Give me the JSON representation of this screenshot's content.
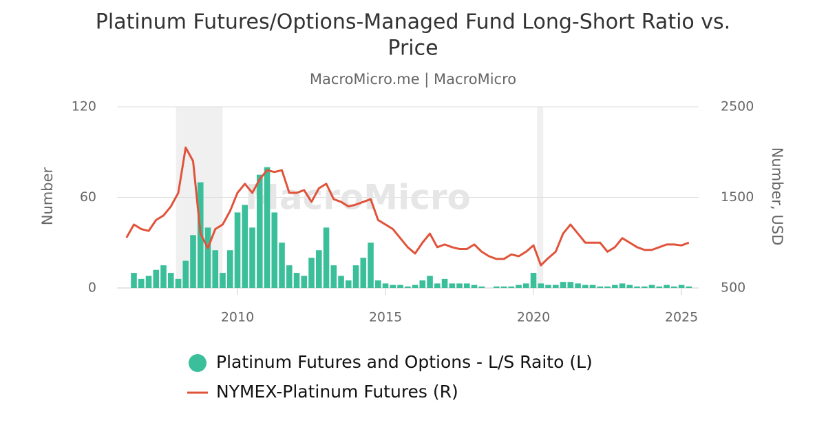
{
  "chart_data": {
    "type": "bar-line",
    "title": "Platinum Futures/Options-Managed Fund Long-Short Ratio vs.",
    "title_line2": "Price",
    "subtitle": "MacroMicro.me | MacroMicro",
    "watermark": "MacroMicro",
    "ylabel": "Number",
    "y2label": "Number, USD",
    "xlim": [
      2005.93,
      2025.58
    ],
    "xticks": [
      2010,
      2015,
      2020,
      2025
    ],
    "ylim": [
      0,
      120
    ],
    "yticks": [
      0,
      60,
      120
    ],
    "y2lim": [
      500,
      2500
    ],
    "y2ticks": [
      500,
      1500,
      2500
    ],
    "grid": true,
    "shaded_periods": [
      [
        2007.92,
        2009.5
      ],
      [
        2020.12,
        2020.33
      ]
    ],
    "x": [
      2006.25,
      2006.5,
      2006.75,
      2007,
      2007.25,
      2007.5,
      2007.75,
      2008,
      2008.25,
      2008.5,
      2008.75,
      2009,
      2009.25,
      2009.5,
      2009.75,
      2010,
      2010.25,
      2010.5,
      2010.75,
      2011,
      2011.25,
      2011.5,
      2011.75,
      2012,
      2012.25,
      2012.5,
      2012.75,
      2013,
      2013.25,
      2013.5,
      2013.75,
      2014,
      2014.25,
      2014.5,
      2014.75,
      2015,
      2015.25,
      2015.5,
      2015.75,
      2016,
      2016.25,
      2016.5,
      2016.75,
      2017,
      2017.25,
      2017.5,
      2017.75,
      2018,
      2018.25,
      2018.5,
      2018.75,
      2019,
      2019.25,
      2019.5,
      2019.75,
      2020,
      2020.25,
      2020.5,
      2020.75,
      2021,
      2021.25,
      2021.5,
      2021.75,
      2022,
      2022.25,
      2022.5,
      2022.75,
      2023,
      2023.25,
      2023.5,
      2023.75,
      2024,
      2024.25,
      2024.5,
      2024.75,
      2025,
      2025.25
    ],
    "series": [
      {
        "name": "Platinum Futures and Options - L/S Raito (L)",
        "color": "#3bbf9b",
        "kind": "bar",
        "values": [
          0,
          10,
          6,
          8,
          12,
          15,
          10,
          6,
          18,
          35,
          70,
          40,
          25,
          10,
          25,
          50,
          55,
          40,
          75,
          80,
          50,
          30,
          15,
          10,
          8,
          20,
          25,
          40,
          15,
          8,
          5,
          15,
          20,
          30,
          5,
          3,
          2,
          2,
          1,
          2,
          5,
          8,
          3,
          6,
          3,
          3,
          3,
          2,
          1,
          0,
          1,
          1,
          1,
          2,
          3,
          10,
          3,
          2,
          2,
          4,
          4,
          3,
          2,
          2,
          1,
          1,
          2,
          3,
          2,
          1,
          1,
          2,
          1,
          2,
          1,
          2,
          1
        ]
      },
      {
        "name": "NYMEX-Platinum Futures (R)",
        "color": "#e0533a",
        "kind": "line",
        "axis": "y2",
        "values": [
          1055,
          1200,
          1150,
          1130,
          1250,
          1300,
          1400,
          1550,
          2050,
          1900,
          1100,
          940,
          1150,
          1200,
          1350,
          1550,
          1650,
          1550,
          1700,
          1800,
          1780,
          1800,
          1550,
          1550,
          1580,
          1450,
          1600,
          1650,
          1480,
          1450,
          1400,
          1420,
          1450,
          1480,
          1250,
          1200,
          1150,
          1050,
          950,
          880,
          1000,
          1100,
          950,
          980,
          950,
          930,
          930,
          980,
          900,
          850,
          820,
          820,
          870,
          850,
          900,
          970,
          750,
          830,
          900,
          1100,
          1200,
          1100,
          1000,
          1000,
          1000,
          900,
          950,
          1050,
          1000,
          950,
          920,
          920,
          950,
          980,
          980,
          970,
          1000
        ]
      }
    ]
  }
}
